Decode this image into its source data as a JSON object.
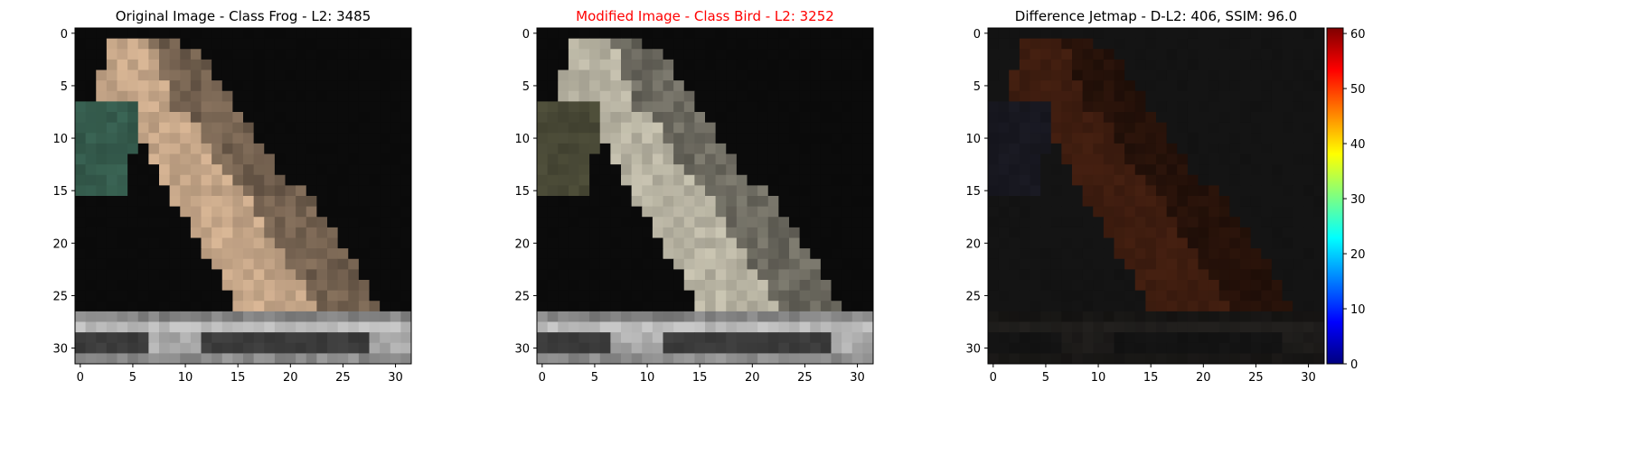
{
  "chart_data": [
    {
      "type": "heatmap",
      "title": "Original Image - Class Frog - L2: 3485",
      "title_color": "#000000",
      "x_ticks": [
        "0",
        "5",
        "10",
        "15",
        "20",
        "25",
        "30"
      ],
      "y_ticks": [
        "0",
        "5",
        "10",
        "15",
        "20",
        "25",
        "30"
      ],
      "grid_size": [
        32,
        32
      ],
      "palette": {
        "background": "#0b0b0b",
        "body": "#e8c3a0",
        "body_shadow": "#b89476",
        "leaf": "#3e6b5a",
        "pedestal_light": "#c8c8c8",
        "pedestal_dark": "#4a4a4a"
      }
    },
    {
      "type": "heatmap",
      "title": "Modified Image - Class Bird - L2: 3252",
      "title_color": "#ff0000",
      "x_ticks": [
        "0",
        "5",
        "10",
        "15",
        "20",
        "25",
        "30"
      ],
      "y_ticks": [
        "0",
        "5",
        "10",
        "15",
        "20",
        "25",
        "30"
      ],
      "grid_size": [
        32,
        32
      ],
      "palette": {
        "background": "#0b0b0b",
        "body": "#d8d3bf",
        "body_shadow": "#9c9a88",
        "leaf": "#55553f",
        "pedestal_light": "#c8c8c8",
        "pedestal_dark": "#4a4a4a"
      }
    },
    {
      "type": "heatmap",
      "title": "Difference Jetmap - D-L2: 406, SSIM: 96.0",
      "title_color": "#000000",
      "x_ticks": [
        "0",
        "5",
        "10",
        "15",
        "20",
        "25",
        "30"
      ],
      "y_ticks": [
        "0",
        "5",
        "10",
        "15",
        "20",
        "25",
        "30"
      ],
      "grid_size": [
        32,
        32
      ],
      "palette": {
        "background": "#141414",
        "body": "#4a2212",
        "body_shadow": "#2e1a18",
        "leaf": "#1c1c26",
        "pedestal_light": "#22201e",
        "pedestal_dark": "#181818"
      },
      "colorbar": {
        "ticks": [
          "0",
          "10",
          "20",
          "30",
          "40",
          "50",
          "60"
        ],
        "range": [
          0,
          61
        ],
        "colormap": "jet"
      }
    }
  ]
}
